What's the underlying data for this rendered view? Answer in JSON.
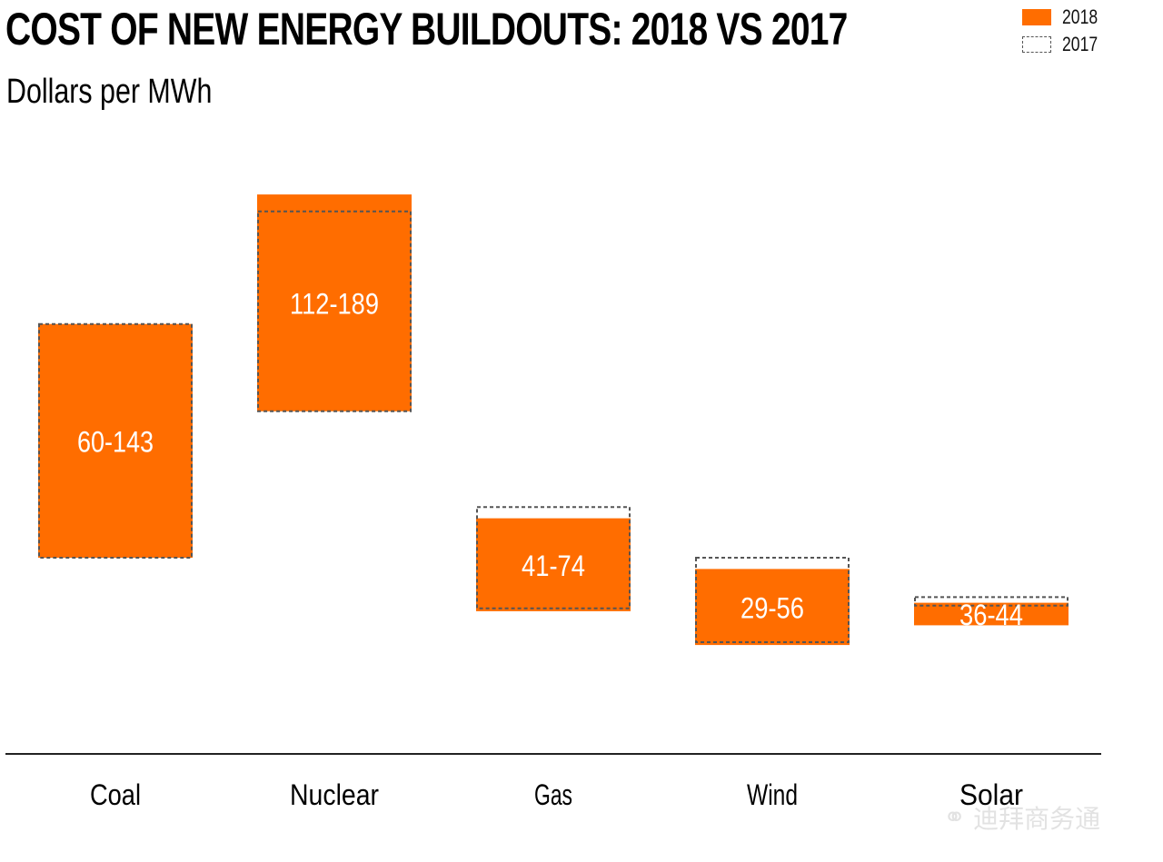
{
  "header": {
    "title": "COST OF NEW ENERGY BUILDOUTS: 2018 VS 2017",
    "subtitle": "Dollars per MWh"
  },
  "legend": {
    "items": [
      {
        "label": "2018",
        "style": "solid",
        "color": "#ff6d00"
      },
      {
        "label": "2017",
        "style": "dashed-outline",
        "color": "#555555"
      }
    ],
    "placement": "top-right"
  },
  "watermark": {
    "text": "迪拜商务通",
    "icon": "wechat-icon"
  },
  "chart_data": {
    "type": "bar",
    "subtype": "floating-range",
    "title": "COST OF NEW ENERGY BUILDOUTS: 2018 VS 2017",
    "subtitle": "Dollars per MWh",
    "xlabel": "",
    "ylabel": "",
    "categories": [
      "Coal",
      "Nuclear",
      "Gas",
      "Wind",
      "Solar"
    ],
    "series": [
      {
        "name": "2018",
        "ranges": [
          [
            60,
            143
          ],
          [
            112,
            189
          ],
          [
            41,
            74
          ],
          [
            29,
            56
          ],
          [
            36,
            44
          ]
        ],
        "labels": [
          "60-143",
          "112-189",
          "41-74",
          "29-56",
          "36-44"
        ]
      },
      {
        "name": "2017",
        "ranges": [
          [
            60,
            143
          ],
          [
            112,
            183
          ],
          [
            42,
            78
          ],
          [
            30,
            60
          ],
          [
            43,
            46
          ]
        ]
      }
    ],
    "ylim": [
      0,
      200
    ],
    "grid": false,
    "colors": {
      "2018": "#ff6d00",
      "2017_outline": "#555555"
    }
  }
}
